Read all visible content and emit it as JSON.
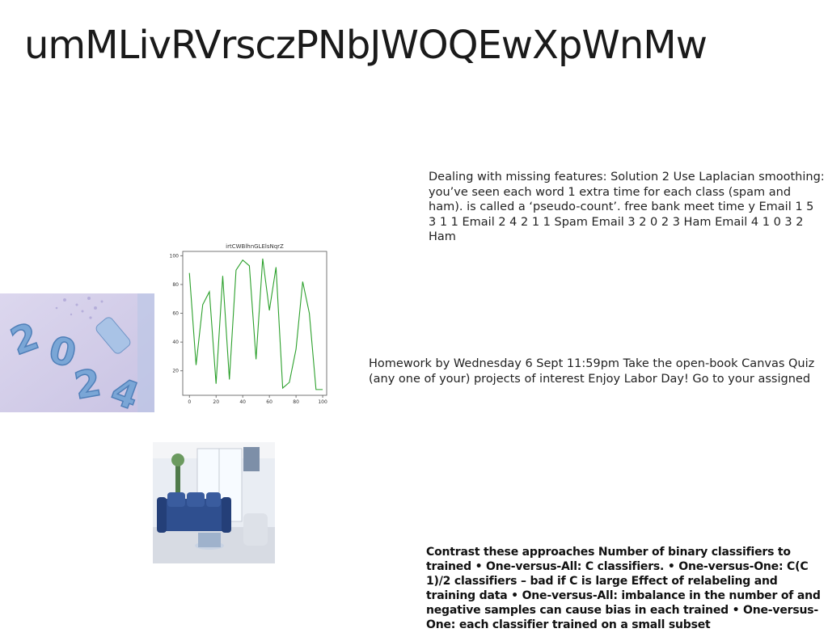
{
  "slide": {
    "title": "umMLivRVrsczPNbJWOQEwXpWnMw",
    "block1": "Dealing with missing features: Solution 2 Use Laplacian smoothing: you’ve seen each word 1 extra time for each class (spam and ham). is called a ‘pseudo-count’. free bank meet time y Email 1 5 3 1 1 Email 2 4 2 1 1 Spam Email 3 2 0 2 3 Ham Email 4 1 0 3 2 Ham",
    "block2": "Homework by Wednesday 6 Sept 11:59pm  Take the open-book Canvas Quiz (any one of your) projects of interest  Enjoy Labor Day!  Go to your assigned",
    "block3": "Contrast these approaches Number of binary classifiers to trained • One-versus-All: C classifiers. • One-versus-One: C(C 1)/2 classifiers – bad if C is large Effect of relabeling and training data • One-versus-All: imbalance in the number of and negative samples can cause bias in each trained • One-versus-One: each classifier trained on a small subset"
  },
  "chart_data": {
    "type": "line",
    "title": "irtCWBlhnGLElsNqrZ",
    "x": [
      0,
      5,
      10,
      15,
      20,
      25,
      30,
      35,
      40,
      45,
      50,
      55,
      60,
      65,
      70,
      75,
      80,
      85,
      90,
      95,
      100
    ],
    "series": [
      {
        "values": [
          88,
          24,
          66,
          75,
          11,
          86,
          14,
          90,
          97,
          93,
          28,
          98,
          62,
          92,
          8,
          12,
          35,
          82,
          60,
          7,
          7
        ]
      }
    ],
    "xlim": [
      -5,
      103
    ],
    "ylim": [
      3,
      103
    ],
    "xticks": [
      0,
      20,
      40,
      60,
      80,
      100
    ],
    "yticks": [
      20,
      40,
      60,
      80,
      100
    ],
    "color": "#2ca02c",
    "grid": false
  }
}
